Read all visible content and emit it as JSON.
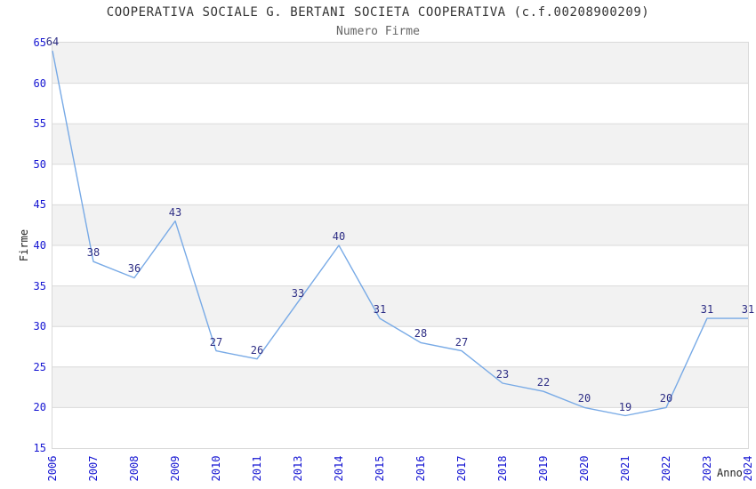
{
  "header": {
    "title": "COOPERATIVA SOCIALE G. BERTANI SOCIETA COOPERATIVA (c.f.00208900209)",
    "subtitle": "Numero Firme"
  },
  "chart_data": {
    "type": "line",
    "title": "COOPERATIVA SOCIALE G. BERTANI SOCIETA COOPERATIVA (c.f.00208900209)",
    "subtitle": "Numero Firme",
    "xlabel": "Anno",
    "ylabel": "Firme",
    "categories": [
      "2006",
      "2007",
      "2008",
      "2009",
      "2010",
      "2011",
      "2013",
      "2014",
      "2015",
      "2016",
      "2017",
      "2018",
      "2019",
      "2020",
      "2021",
      "2022",
      "2023",
      "2024"
    ],
    "values": [
      64,
      38,
      36,
      43,
      27,
      26,
      33,
      40,
      31,
      28,
      27,
      23,
      22,
      20,
      19,
      20,
      31,
      31
    ],
    "ylim": [
      15,
      65
    ],
    "yticks": [
      15,
      20,
      25,
      30,
      35,
      40,
      45,
      50,
      55,
      60,
      65
    ],
    "grid": "horizontal",
    "bands": "alternating-gray",
    "legend_position": "none",
    "data_labels_visible": true,
    "colors": {
      "line": "#78aae6",
      "axis_tick_label": "#1414d2",
      "data_label": "#2e2e85",
      "band_fill": "#f2f2f2",
      "gridline": "#d9d9d9",
      "plot_border": "#d9d9d9",
      "title": "#333333",
      "subtitle": "#666666",
      "axis_title": "#222222",
      "background": "#ffffff"
    }
  }
}
